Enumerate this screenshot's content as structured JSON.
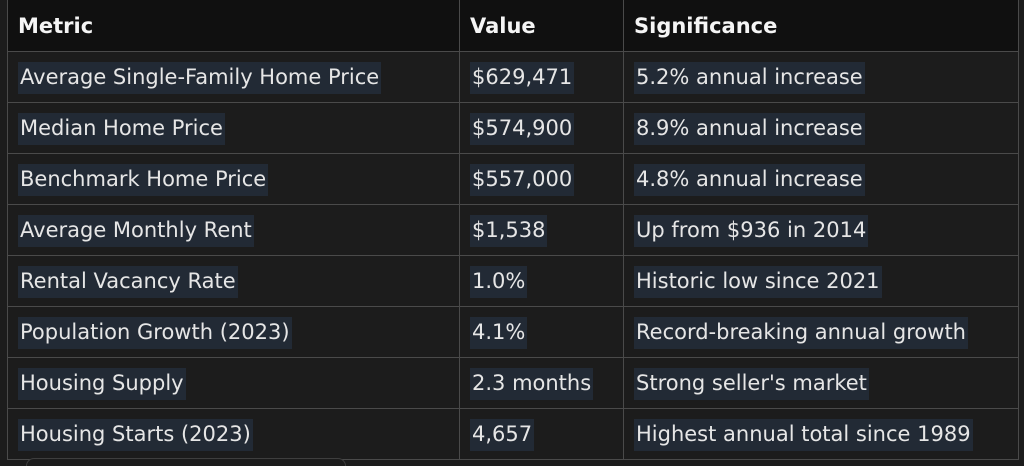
{
  "table": {
    "headers": [
      "Metric",
      "Value",
      "Significance"
    ],
    "rows": [
      [
        "Average Single-Family Home Price",
        "$629,471",
        "5.2% annual increase"
      ],
      [
        "Median Home Price",
        "$574,900",
        "8.9% annual increase"
      ],
      [
        "Benchmark Home Price",
        "$557,000",
        "4.8% annual increase"
      ],
      [
        "Average Monthly Rent",
        "$1,538",
        "Up from $936 in 2014"
      ],
      [
        "Rental Vacancy Rate",
        "1.0%",
        "Historic low since 2021"
      ],
      [
        "Population Growth (2023)",
        "4.1%",
        "Record-breaking annual growth"
      ],
      [
        "Housing Supply",
        "2.3 months",
        "Strong seller's market"
      ],
      [
        "Housing Starts (2023)",
        "4,657",
        "Highest annual total since 1989"
      ]
    ]
  },
  "colors": {
    "background": "#1c1c1c",
    "header_background": "#101010",
    "text_highlight": "#222a35",
    "border": "#4a4a4a"
  }
}
